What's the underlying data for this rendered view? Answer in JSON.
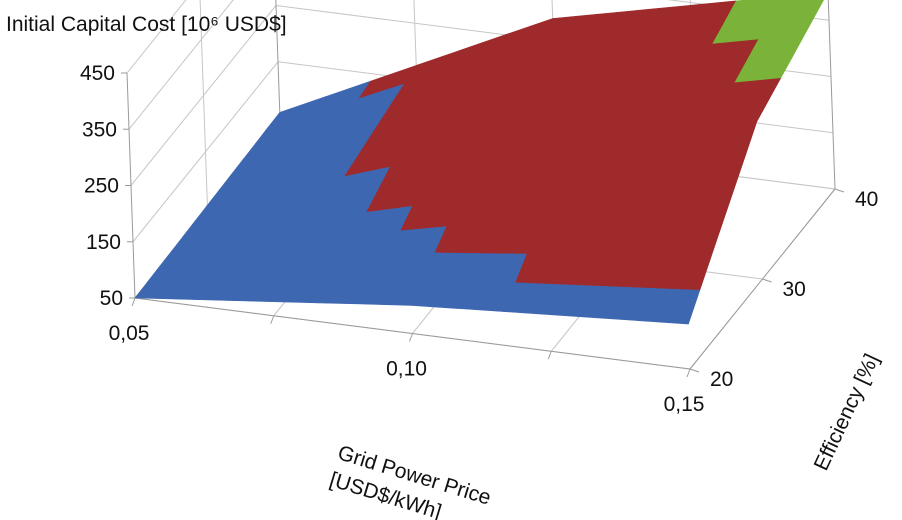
{
  "chart_data": {
    "type": "surface",
    "title": "Initial Capital Cost [10⁶ USD$]",
    "xlabel": "Grid Power Price [USD$/kWh]",
    "ylabel": "Efficiency [%]",
    "zlabel": "",
    "x_ticks": [
      "0,05",
      "0,10",
      "0,15"
    ],
    "y_ticks": [
      "20",
      "30",
      "40"
    ],
    "z_ticks": [
      "50",
      "150",
      "250",
      "350",
      "450"
    ],
    "x": [
      0.05,
      0.1,
      0.15
    ],
    "y": [
      20,
      30,
      40
    ],
    "zlim": [
      50,
      450
    ],
    "z": [
      [
        50,
        100,
        130
      ],
      [
        55,
        220,
        330
      ],
      [
        60,
        290,
        400
      ]
    ],
    "band_ranges": [
      "50-150",
      "150-250",
      "250-350",
      "350-450"
    ],
    "band_colors": [
      "#3e67b1",
      "#9e2a2b",
      "#9e2a2b",
      "#7bb33a"
    ],
    "grid": true,
    "legend": "none"
  }
}
